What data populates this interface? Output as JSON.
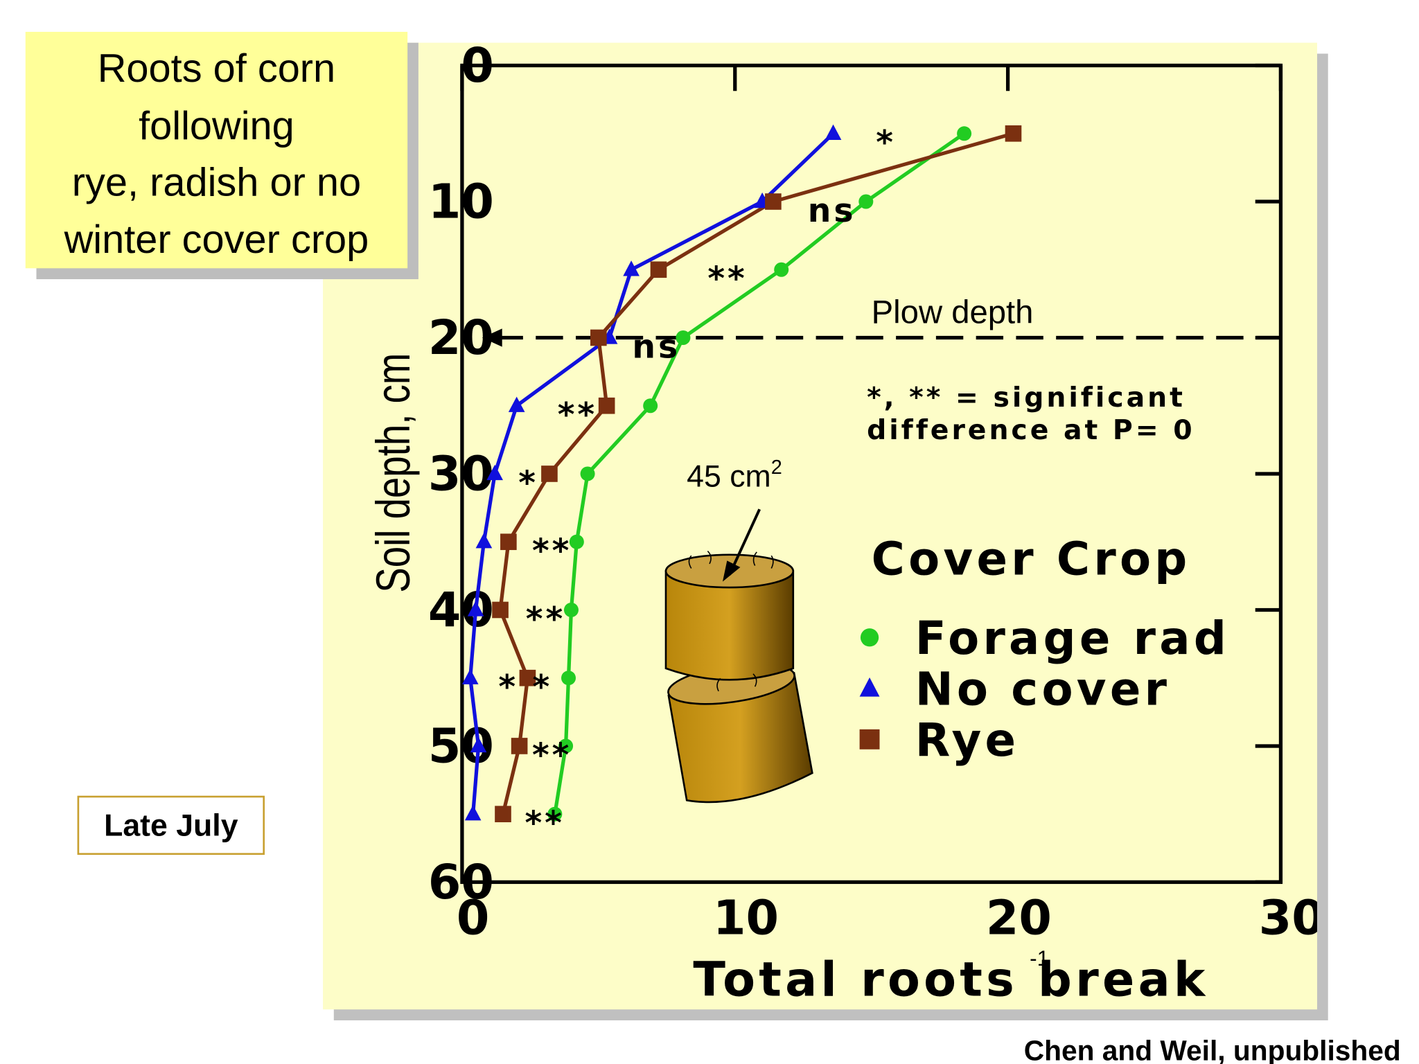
{
  "chart_data": {
    "type": "line",
    "title_lines": [
      "Roots of corn",
      "following",
      "rye, radish or no",
      "winter cover crop"
    ],
    "y_label": "Soil depth, cm",
    "x_label": "Total roots break",
    "x_label_superscript": "-1",
    "ylim": [
      0,
      60
    ],
    "yticks": [
      0,
      10,
      20,
      30,
      40,
      50,
      60
    ],
    "y_inverted": true,
    "xlim": [
      0,
      30
    ],
    "xticks": [
      0,
      10,
      20,
      30
    ],
    "depths": [
      5,
      10,
      15,
      20,
      25,
      30,
      35,
      40,
      45,
      50,
      55
    ],
    "series": [
      {
        "name": "Forage rad",
        "color": "#22cc22",
        "marker": "circle",
        "values": [
          18.4,
          14.8,
          11.7,
          8.1,
          6.9,
          4.6,
          4.2,
          4.0,
          3.9,
          3.8,
          3.4
        ]
      },
      {
        "name": "No cover",
        "color": "#1010dd",
        "marker": "triangle",
        "values": [
          13.6,
          11.0,
          6.2,
          5.4,
          2.0,
          1.2,
          0.8,
          0.5,
          0.3,
          0.6,
          0.4
        ]
      },
      {
        "name": "Rye",
        "color": "#7b3010",
        "marker": "square",
        "values": [
          20.2,
          11.4,
          7.2,
          5.0,
          5.3,
          3.2,
          1.7,
          1.4,
          2.4,
          2.1,
          1.5
        ]
      }
    ],
    "significance": [
      "*",
      "ns",
      "**",
      "ns",
      "**",
      "*",
      "**",
      "**",
      "* *",
      "**",
      "**"
    ],
    "plow_depth": 20,
    "plow_label": "Plow depth",
    "note_lines": [
      "*, ** = significant",
      "difference at P= 0"
    ],
    "legend_title": "Cover Crop",
    "area_label": {
      "text": "45 cm",
      "superscript": "2"
    },
    "date_label": "Late July",
    "source": "Chen and Weil, unpublished"
  }
}
